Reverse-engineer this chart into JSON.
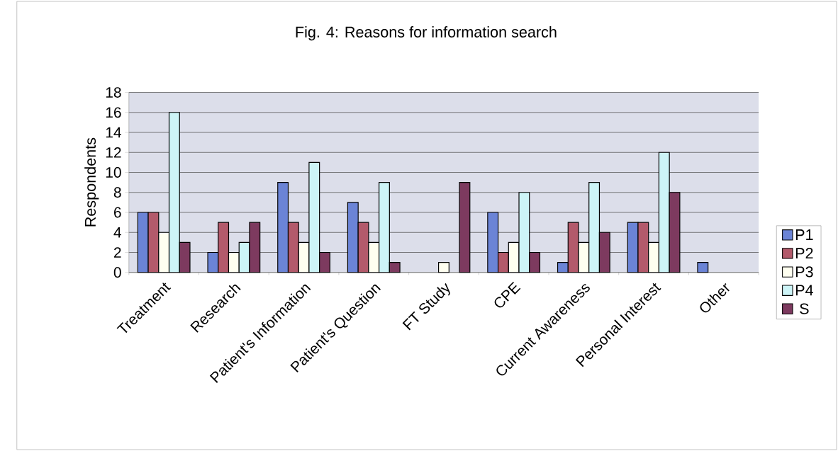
{
  "chart_data": {
    "type": "bar",
    "title": "Fig. 4:  Reasons for information search",
    "ylabel": "Respondents",
    "categories": [
      "Treatment",
      "Research",
      "Patient's Information",
      "Patient's Question",
      "FT Study",
      "CPE",
      "Current Awareness",
      "Personal Interest",
      "Other"
    ],
    "series": [
      {
        "name": "P1",
        "color": "#6b84d6",
        "values": [
          6,
          2,
          9,
          7,
          0,
          6,
          1,
          5,
          1
        ]
      },
      {
        "name": "P2",
        "color": "#b35a6b",
        "values": [
          6,
          5,
          5,
          5,
          0,
          2,
          5,
          5,
          0
        ]
      },
      {
        "name": "P3",
        "color": "#fffff0",
        "values": [
          4,
          2,
          3,
          3,
          1,
          3,
          3,
          3,
          0
        ]
      },
      {
        "name": "P4",
        "color": "#cdf4f7",
        "values": [
          16,
          3,
          11,
          9,
          0,
          8,
          9,
          12,
          0
        ]
      },
      {
        "name": "S",
        "color": "#7d3a5f",
        "values": [
          3,
          5,
          2,
          1,
          9,
          2,
          4,
          8,
          0
        ]
      }
    ],
    "ylim": [
      0,
      18
    ],
    "yticks": [
      0,
      2,
      4,
      6,
      8,
      10,
      12,
      14,
      16,
      18
    ],
    "grid": "y",
    "legend": "right"
  }
}
